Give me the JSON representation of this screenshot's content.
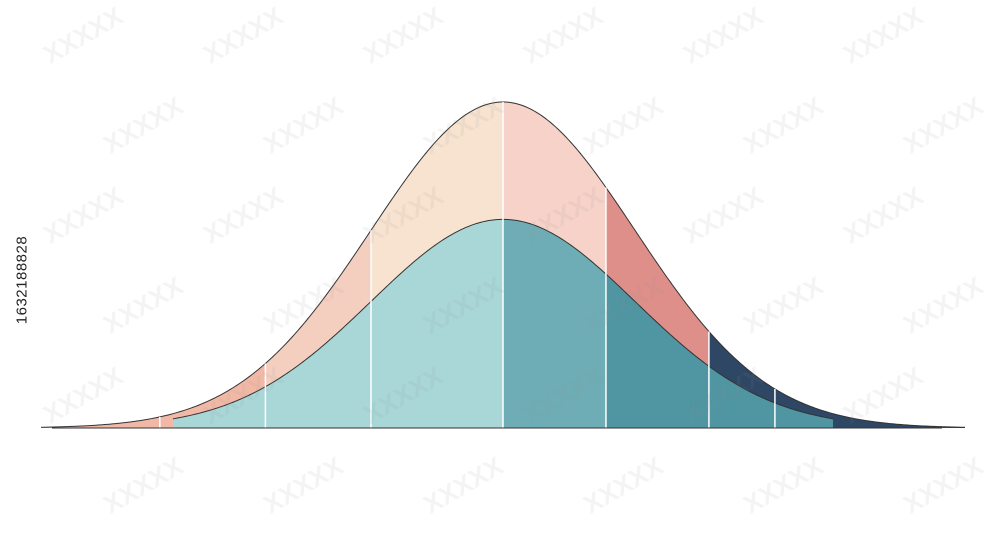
{
  "image_id_text": "1632188828",
  "watermark": {
    "text": "XXXXX",
    "opacity": 0.1
  },
  "colors": {
    "background": "#ffffff",
    "outline": "#333333",
    "divider": "#ffffff",
    "outer_segments": [
      "#f2b8a6",
      "#f4cfc0",
      "#f8e3d0",
      "#f7d2c8",
      "#de8f89",
      "#2d4765"
    ],
    "inner_segments": [
      "#a9d6d6",
      "#6eadb5",
      "#4f95a2"
    ]
  },
  "curves": {
    "outer": {
      "mean": 0,
      "sd": 1,
      "peak": 1.0,
      "domain": [
        -3.5,
        3.5
      ]
    },
    "inner": {
      "mean": 0,
      "sd": 1,
      "peak": 0.64,
      "domain": [
        -2.5,
        2.5
      ]
    }
  },
  "dividers": [
    -2.6,
    -1.8,
    -1.0,
    0.0,
    0.78,
    1.56,
    2.06
  ]
}
